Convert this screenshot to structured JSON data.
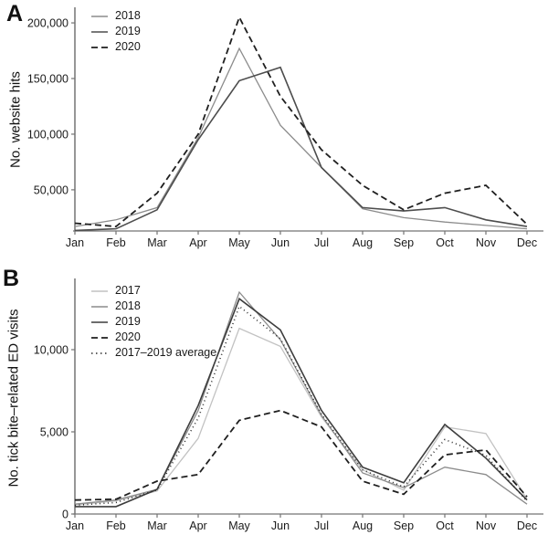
{
  "panels": [
    {
      "label": "A",
      "y_title": "No. website hits"
    },
    {
      "label": "B",
      "y_title": "No. tick bite–related ED visits"
    }
  ],
  "colors": {
    "axis": "#737373",
    "tick_text": "#1a1a1a",
    "background": "#ffffff"
  },
  "chart_data": [
    {
      "type": "line",
      "title": "",
      "xlabel": "",
      "ylabel": "No. website hits",
      "grid": false,
      "legend_position": "top-left",
      "categories": [
        "Jan",
        "Feb",
        "Mar",
        "Apr",
        "May",
        "Jun",
        "Jul",
        "Aug",
        "Sep",
        "Oct",
        "Nov",
        "Dec"
      ],
      "ylim": [
        13000,
        214000
      ],
      "yticks": [
        {
          "value": 50000,
          "label": "50,000"
        },
        {
          "value": 100000,
          "label": "100,000"
        },
        {
          "value": 150000,
          "label": "150,000"
        },
        {
          "value": 200000,
          "label": "200,000"
        }
      ],
      "series": [
        {
          "name": "2018",
          "color": "#8c8c8c",
          "width": 1.3,
          "dash": null,
          "values": [
            17000,
            23000,
            34000,
            97000,
            177000,
            108000,
            70000,
            33000,
            25000,
            21000,
            18000,
            15000
          ]
        },
        {
          "name": "2019",
          "color": "#4d4d4d",
          "width": 1.6,
          "dash": null,
          "values": [
            13500,
            15000,
            32000,
            95000,
            148000,
            160000,
            70000,
            34000,
            31000,
            34000,
            23000,
            17000
          ]
        },
        {
          "name": "2020",
          "color": "#1f1f1f",
          "width": 1.8,
          "dash": "7,4",
          "values": [
            20000,
            17000,
            47000,
            100000,
            205000,
            134000,
            86000,
            54000,
            32000,
            47000,
            54000,
            19000
          ]
        }
      ]
    },
    {
      "type": "line",
      "title": "",
      "xlabel": "",
      "ylabel": "No. tick bite–related ED visits",
      "grid": false,
      "legend_position": "top-left",
      "categories": [
        "Jan",
        "Feb",
        "Mar",
        "Apr",
        "May",
        "Jun",
        "Jul",
        "Aug",
        "Sep",
        "Oct",
        "Nov",
        "Dec"
      ],
      "ylim": [
        0,
        14333
      ],
      "yticks": [
        {
          "value": 0,
          "label": "0"
        },
        {
          "value": 5000,
          "label": "5,000"
        },
        {
          "value": 10000,
          "label": "10,000"
        }
      ],
      "series": [
        {
          "name": "2017",
          "color": "#c2c2c2",
          "width": 1.3,
          "dash": null,
          "values": [
            550,
            800,
            1400,
            4600,
            11300,
            10200,
            5900,
            2700,
            1450,
            5300,
            4900,
            900
          ]
        },
        {
          "name": "2018",
          "color": "#8c8c8c",
          "width": 1.3,
          "dash": null,
          "values": [
            600,
            850,
            1500,
            6300,
            13500,
            10600,
            6000,
            2500,
            1600,
            2850,
            2400,
            600
          ]
        },
        {
          "name": "2019",
          "color": "#3d3d3d",
          "width": 1.6,
          "dash": null,
          "values": [
            450,
            450,
            1500,
            6600,
            13100,
            11200,
            6300,
            2850,
            1900,
            5450,
            3400,
            850
          ]
        },
        {
          "name": "2020",
          "color": "#1f1f1f",
          "width": 1.8,
          "dash": "7,4",
          "values": [
            850,
            900,
            2000,
            2400,
            5700,
            6300,
            5300,
            2000,
            1200,
            3600,
            3900,
            1050
          ]
        },
        {
          "name": "2017–2019 average",
          "color": "#2b2b2b",
          "width": 1.6,
          "dash": "1,3.5",
          "values": [
            533,
            700,
            1467,
            5833,
            12633,
            10667,
            6067,
            2683,
            1650,
            4533,
            3567,
            783
          ]
        }
      ]
    }
  ]
}
